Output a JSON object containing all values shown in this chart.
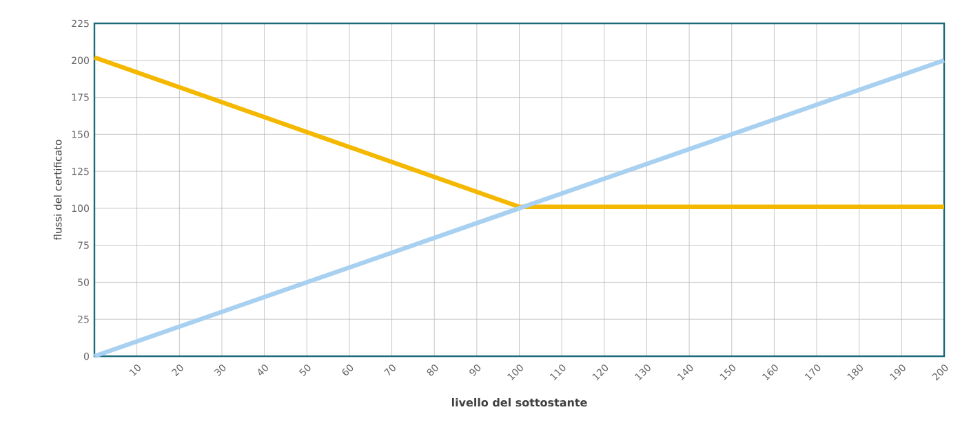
{
  "chart_data": {
    "type": "line",
    "xlabel": "livello del sottostante",
    "ylabel": "flussi del certificato",
    "xlim": [
      0,
      200
    ],
    "ylim": [
      0,
      225
    ],
    "xticks": [
      10,
      20,
      30,
      40,
      50,
      60,
      70,
      80,
      90,
      100,
      110,
      120,
      130,
      140,
      150,
      160,
      170,
      180,
      190,
      200
    ],
    "yticks": [
      0,
      25,
      50,
      75,
      100,
      125,
      150,
      175,
      200,
      225
    ],
    "grid": true,
    "series": [
      {
        "color": "#f5b800",
        "x": [
          0,
          100,
          200
        ],
        "values": [
          202,
          101,
          101
        ]
      },
      {
        "color": "#a8d0f0",
        "x": [
          0,
          100,
          200
        ],
        "values": [
          0,
          100,
          200
        ]
      }
    ]
  }
}
